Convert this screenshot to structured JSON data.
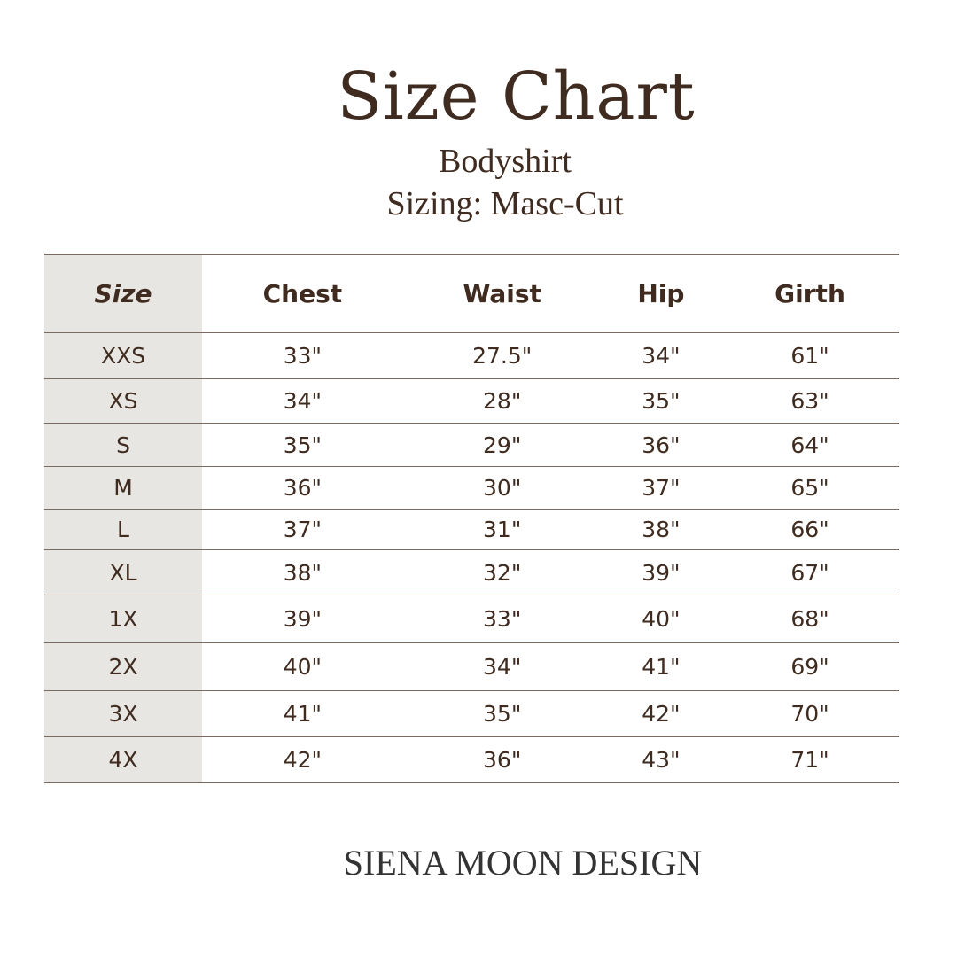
{
  "title": "Size Chart",
  "subtitle": "Bodyshirt",
  "sizing": "Sizing: Masc-Cut",
  "table": {
    "headers": [
      "Size",
      "Chest",
      "Waist",
      "Hip",
      "Girth"
    ],
    "rows": [
      [
        "XXS",
        "33\"",
        "27.5\"",
        "34\"",
        "61\""
      ],
      [
        "XS",
        "34\"",
        "28\"",
        "35\"",
        "63\""
      ],
      [
        "S",
        "35\"",
        "29\"",
        "36\"",
        "64\""
      ],
      [
        "M",
        "36\"",
        "30\"",
        "37\"",
        "65\""
      ],
      [
        "L",
        "37\"",
        "31\"",
        "38\"",
        "66\""
      ],
      [
        "XL",
        "38\"",
        "32\"",
        "39\"",
        "67\""
      ],
      [
        "1X",
        "39\"",
        "33\"",
        "40\"",
        "68\""
      ],
      [
        "2X",
        "40\"",
        "34\"",
        "41\"",
        "69\""
      ],
      [
        "3X",
        "41\"",
        "35\"",
        "42\"",
        "70\""
      ],
      [
        "4X",
        "42\"",
        "36\"",
        "43\"",
        "71\""
      ]
    ]
  },
  "brand": "SIENA MOON DESIGN",
  "colors": {
    "text": "#3f2b1f",
    "size_column": "#e8e6e2",
    "rule": "#7a6a5f"
  }
}
